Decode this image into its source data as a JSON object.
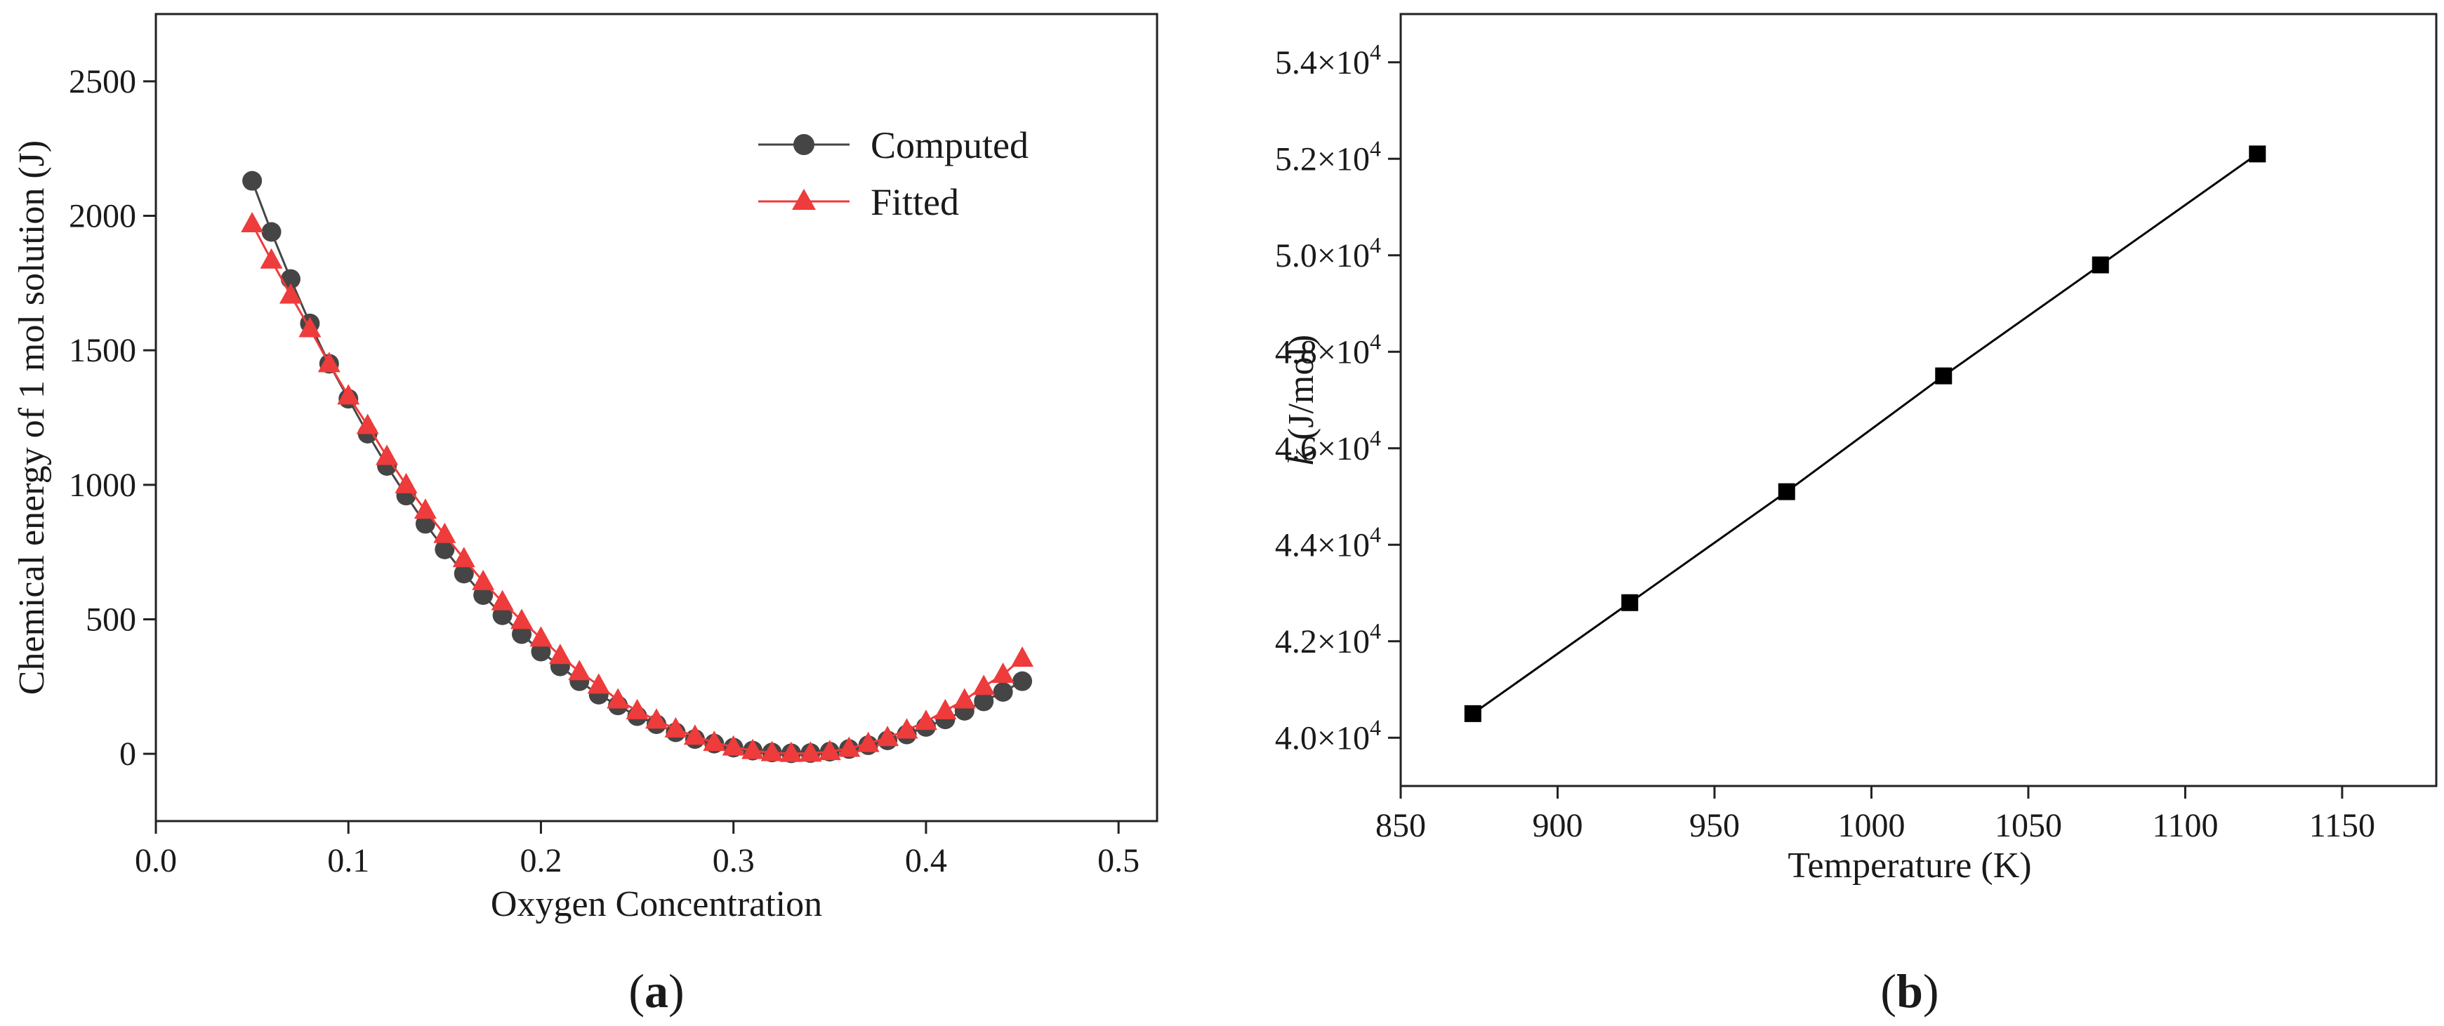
{
  "chart_data": [
    {
      "type": "line",
      "panel_label": "(a)",
      "title": "",
      "xlabel": "Oxygen Concentration",
      "ylabel": "Chemical energy of 1 mol solution (J)",
      "xlim": [
        0.0,
        0.52
      ],
      "ylim": [
        -250,
        2750
      ],
      "xticks": [
        "0.0",
        "0.1",
        "0.2",
        "0.3",
        "0.4",
        "0.5"
      ],
      "yticks": [
        "0",
        "500",
        "1000",
        "1500",
        "2000",
        "2500"
      ],
      "legend_position": "top-right",
      "x": [
        0.05,
        0.06,
        0.07,
        0.08,
        0.09,
        0.1,
        0.11,
        0.12,
        0.13,
        0.14,
        0.15,
        0.16,
        0.17,
        0.18,
        0.19,
        0.2,
        0.21,
        0.22,
        0.23,
        0.24,
        0.25,
        0.26,
        0.27,
        0.28,
        0.29,
        0.3,
        0.31,
        0.32,
        0.33,
        0.34,
        0.35,
        0.36,
        0.37,
        0.38,
        0.39,
        0.4,
        0.41,
        0.42,
        0.43,
        0.44,
        0.45
      ],
      "series": [
        {
          "name": "Computed",
          "color": "#454545",
          "marker": "circle",
          "values": [
            2130,
            1940,
            1765,
            1600,
            1450,
            1320,
            1190,
            1070,
            960,
            855,
            760,
            670,
            590,
            515,
            445,
            380,
            325,
            270,
            220,
            180,
            140,
            110,
            80,
            55,
            38,
            23,
            12,
            5,
            2,
            3,
            8,
            18,
            32,
            50,
            72,
            100,
            128,
            160,
            195,
            230,
            270
          ]
        },
        {
          "name": "Fitted",
          "color": "#ee3b3b",
          "marker": "triangle",
          "values": [
            1970,
            1835,
            1705,
            1580,
            1450,
            1330,
            1220,
            1105,
            1000,
            905,
            815,
            725,
            640,
            565,
            495,
            430,
            365,
            305,
            255,
            200,
            160,
            125,
            92,
            65,
            42,
            25,
            12,
            4,
            1,
            2,
            8,
            20,
            38,
            60,
            88,
            120,
            160,
            200,
            250,
            295,
            355
          ]
        }
      ]
    },
    {
      "type": "line",
      "panel_label": "(b)",
      "title": "",
      "xlabel": "Temperature (K)",
      "ylabel_italic": "k",
      "ylabel_rest": " (J/mol)",
      "xlim": [
        850,
        1180
      ],
      "ylim": [
        39000,
        55000
      ],
      "xticks": [
        "850",
        "900",
        "950",
        "1000",
        "1050",
        "1100",
        "1150"
      ],
      "ytick_mantissas": [
        "4.0×10",
        "4.2×10",
        "4.4×10",
        "4.6×10",
        "4.8×10",
        "5.0×10",
        "5.2×10",
        "5.4×10"
      ],
      "ytick_exponent": "4",
      "x": [
        873,
        923,
        973,
        1023,
        1073,
        1123
      ],
      "series": [
        {
          "name": "k",
          "color": "#000000",
          "marker": "square",
          "values": [
            40500,
            42800,
            45100,
            47500,
            49800,
            52100
          ]
        }
      ]
    }
  ]
}
